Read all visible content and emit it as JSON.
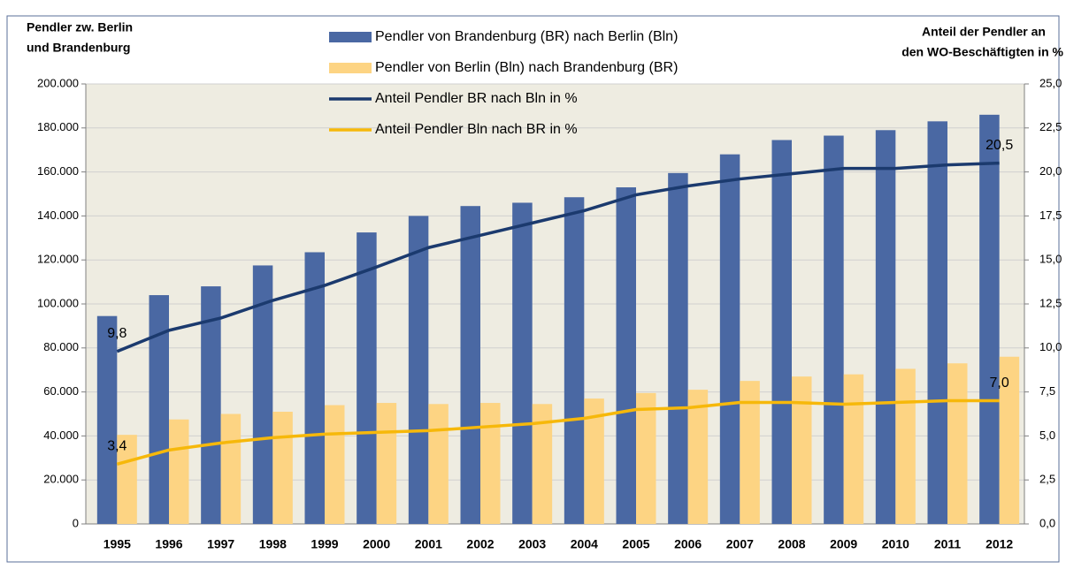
{
  "chart_data": {
    "type": "bar_line",
    "y_label": [
      "Pendler zw. Berlin",
      "und Brandenburg"
    ],
    "y2_label": [
      "Anteil der Pendler an",
      "den WO-Beschäftigten in %"
    ],
    "categories": [
      "1995",
      "1996",
      "1997",
      "1998",
      "1999",
      "2000",
      "2001",
      "2002",
      "2003",
      "2004",
      "2005",
      "2006",
      "2007",
      "2008",
      "2009",
      "2010",
      "2011",
      "2012"
    ],
    "series": [
      {
        "name": "Pendler von Brandenburg (BR) nach Berlin (Bln)",
        "kind": "bar",
        "color": "#4a68a3",
        "values": [
          94500,
          104000,
          108000,
          117500,
          123500,
          132500,
          140000,
          144500,
          146000,
          148500,
          153000,
          159500,
          168000,
          174500,
          176500,
          179000,
          183000,
          186000
        ]
      },
      {
        "name": "Pendler von Berlin (Bln) nach Brandenburg (BR)",
        "kind": "bar",
        "color": "#fdd483",
        "values": [
          40500,
          47500,
          50000,
          51000,
          54000,
          55000,
          54500,
          55000,
          54500,
          57000,
          59500,
          61000,
          65000,
          67000,
          68000,
          70500,
          73000,
          76000
        ]
      },
      {
        "name": "Anteil Pendler BR nach Bln in %",
        "kind": "line",
        "axis": "y2",
        "color": "#1b3a6e",
        "values": [
          9.8,
          11.0,
          11.7,
          12.7,
          13.55,
          14.6,
          15.7,
          16.4,
          17.1,
          17.8,
          18.7,
          19.2,
          19.6,
          19.9,
          20.2,
          20.2,
          20.4,
          20.5
        ],
        "value_labels": [
          "9,8",
          null,
          null,
          null,
          null,
          null,
          null,
          null,
          null,
          null,
          null,
          null,
          null,
          null,
          null,
          null,
          null,
          "20,5"
        ]
      },
      {
        "name": "Anteil Pendler Bln nach BR in %",
        "kind": "line",
        "axis": "y2",
        "color": "#f6b80a",
        "values": [
          3.4,
          4.2,
          4.6,
          4.9,
          5.1,
          5.2,
          5.3,
          5.5,
          5.7,
          6.0,
          6.5,
          6.6,
          6.9,
          6.9,
          6.8,
          6.9,
          7.0,
          7.0
        ],
        "value_labels": [
          "3,4",
          null,
          null,
          null,
          null,
          null,
          null,
          null,
          null,
          null,
          null,
          null,
          null,
          null,
          null,
          null,
          null,
          "7,0"
        ]
      }
    ],
    "ylim": [
      0,
      200000
    ],
    "yticks": [
      0,
      {
        "value": 20000,
        "label": "20.000"
      },
      {
        "value": 40000,
        "label": "40.000"
      },
      {
        "value": 60000,
        "label": "60.000"
      },
      {
        "value": 80000,
        "label": "80.000"
      },
      {
        "value": 100000,
        "label": "100.000"
      },
      {
        "value": 120000,
        "label": "120.000"
      },
      {
        "value": 140000,
        "label": "140.000"
      },
      {
        "value": 160000,
        "label": "160.000"
      },
      {
        "value": 180000,
        "label": "180.000"
      },
      {
        "value": 200000,
        "label": "200.000"
      }
    ],
    "y2lim": [
      0,
      25
    ],
    "y2ticks": [
      {
        "value": 0,
        "label": "0,0"
      },
      {
        "value": 2.5,
        "label": "2,5"
      },
      {
        "value": 5,
        "label": "5,0"
      },
      {
        "value": 7.5,
        "label": "7,5"
      },
      {
        "value": 10,
        "label": "10,0"
      },
      {
        "value": 12.5,
        "label": "12,5"
      },
      {
        "value": 15,
        "label": "15,0"
      },
      {
        "value": 17.5,
        "label": "17,5"
      },
      {
        "value": 20,
        "label": "20,0"
      },
      {
        "value": 22.5,
        "label": "22,5"
      },
      {
        "value": 25,
        "label": "25,0"
      }
    ],
    "grid": true
  }
}
